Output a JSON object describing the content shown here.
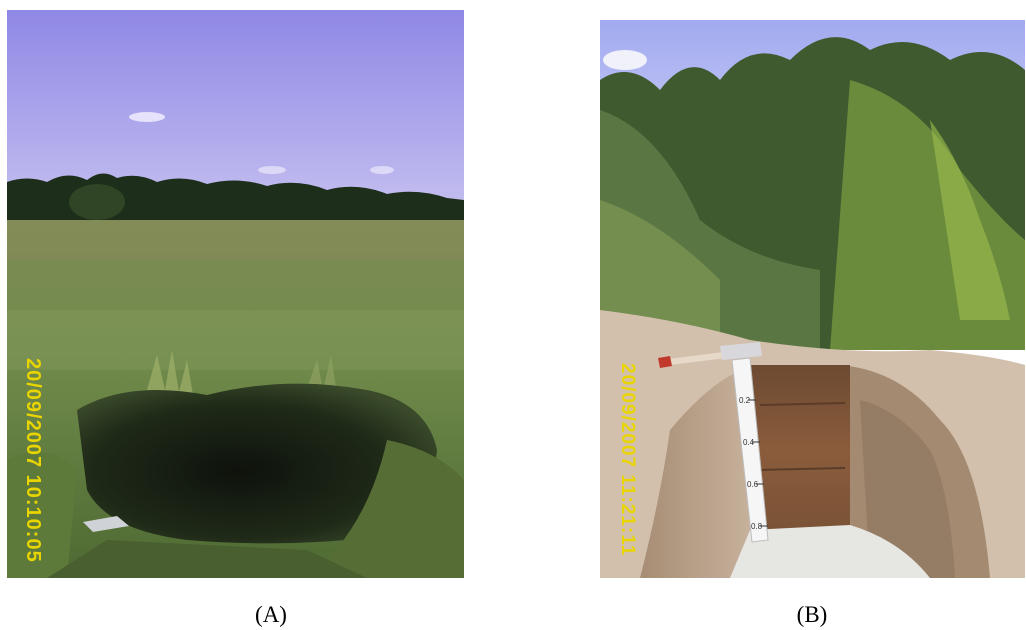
{
  "colors": {
    "stamp": "#e8d400"
  },
  "panels": [
    {
      "caption": "(A)",
      "timestamp": "20/09/2007 10:10:05",
      "scene": "grassland-pit-photo"
    },
    {
      "caption": "(B)",
      "timestamp": "20/09/2007 11:21:11",
      "scene": "soil-profile-pit-photo",
      "ruler_ticks": [
        "0.2",
        "0.4",
        "0.6",
        "0.8"
      ]
    }
  ]
}
